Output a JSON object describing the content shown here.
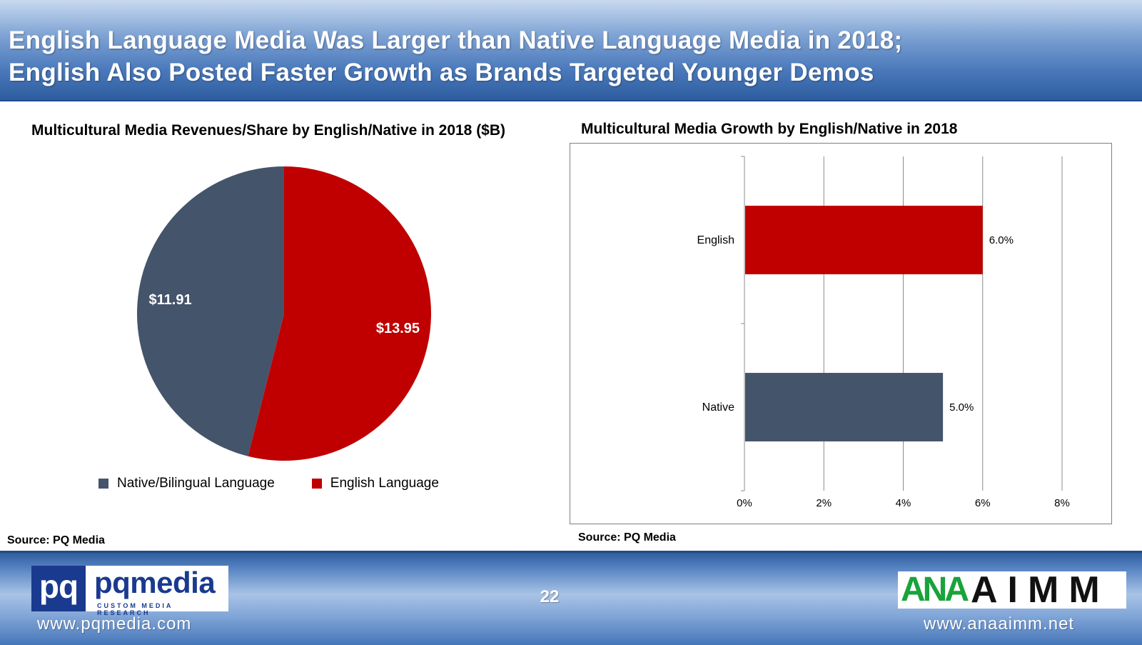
{
  "header": {
    "title_line1": "English Language Media Was Larger than Native Language Media in 2018;",
    "title_line2": "English Also Posted Faster Growth as Brands Targeted Younger Demos"
  },
  "pie_chart": {
    "title": "Multicultural Media Revenues/Share by English/Native in 2018 ($B)",
    "source": "Source: PQ Media"
  },
  "bar_chart": {
    "title": "Multicultural Media Growth by English/Native in 2018",
    "source": "Source: PQ Media"
  },
  "footer": {
    "pq_mark": "pq",
    "pq_name": "pqmedia",
    "pq_tagline": "CUSTOM MEDIA RESEARCH",
    "pq_url": "www.pqmedia.com",
    "page_number": "22",
    "ana_mark": "ANA",
    "aimm_mark": "AIMM",
    "ana_url": "www.anaaimm.net"
  },
  "chart_data": [
    {
      "type": "pie",
      "title": "Multicultural Media Revenues/Share by English/Native in 2018 ($B)",
      "labels": [
        "Native/Bilingual Language",
        "English Language"
      ],
      "values": [
        11.91,
        13.95
      ],
      "data_labels": [
        "$11.91",
        "$13.95"
      ],
      "colors": [
        "#44546a",
        "#c00000"
      ],
      "legend_position": "bottom"
    },
    {
      "type": "bar",
      "orientation": "horizontal",
      "title": "Multicultural Media Growth by English/Native in 2018",
      "categories": [
        "English",
        "Native"
      ],
      "values": [
        6.0,
        5.0
      ],
      "data_labels": [
        "6.0%",
        "5.0%"
      ],
      "colors": [
        "#c00000",
        "#44546a"
      ],
      "xlim": [
        0,
        8
      ],
      "xticks": [
        "0%",
        "2%",
        "4%",
        "6%",
        "8%"
      ],
      "grid": true
    }
  ]
}
